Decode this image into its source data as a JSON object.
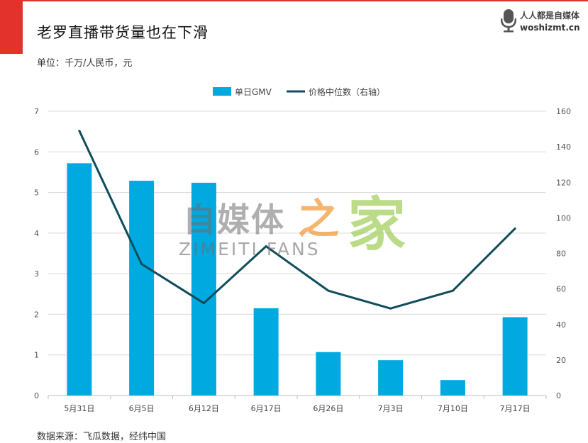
{
  "header": {
    "title": "老罗直播带货量也在下滑",
    "unit": "单位：千万/人民币，元",
    "source": "数据来源：飞瓜数据，经纬中国"
  },
  "logo": {
    "line1": "人人都是自媒体",
    "line2": "woshizmt.cn"
  },
  "watermark": {
    "cn": "自媒体",
    "zhi": "之",
    "jia": "家",
    "en": "ZIMEITI FANS"
  },
  "colors": {
    "bar": "#00a9e0",
    "line": "#0f4c5c",
    "grid": "#d9d9d9",
    "accent": "#e3322b"
  },
  "chart_data": {
    "type": "bar",
    "categories": [
      "5月31日",
      "6月5日",
      "6月12日",
      "6月17日",
      "6月26日",
      "7月3日",
      "7月10日",
      "7月17日"
    ],
    "series": [
      {
        "name": "单日GMV",
        "type": "bar",
        "axis": "left",
        "values": [
          5.72,
          5.29,
          5.24,
          2.15,
          1.07,
          0.87,
          0.38,
          1.93
        ]
      },
      {
        "name": "价格中位数（右轴）",
        "type": "line",
        "axis": "right",
        "values": [
          149,
          74,
          52,
          84,
          59,
          49,
          59,
          94
        ]
      }
    ],
    "ylim_left": [
      0,
      7
    ],
    "yticks_left": [
      0,
      1,
      2,
      3,
      4,
      5,
      6,
      7
    ],
    "ylim_right": [
      0,
      160
    ],
    "yticks_right": [
      0,
      20,
      40,
      60,
      80,
      100,
      120,
      140,
      160
    ],
    "legend": "top-center",
    "grid": true
  }
}
